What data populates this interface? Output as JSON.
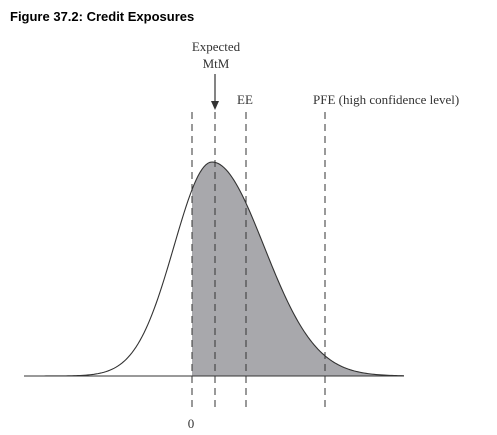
{
  "title": "Figure 37.2: Credit Exposures",
  "labels": {
    "expected_mtm_line1": "Expected",
    "expected_mtm_line2": "MtM",
    "ee": "EE",
    "pfe": "PFE (high confidence level)",
    "zero": "0"
  },
  "colors": {
    "shaded_area": "#a8a8ac",
    "curve": "#333333",
    "axis": "#333333",
    "text": "#333333"
  },
  "icons": {
    "arrow": "down-arrow-icon"
  }
}
